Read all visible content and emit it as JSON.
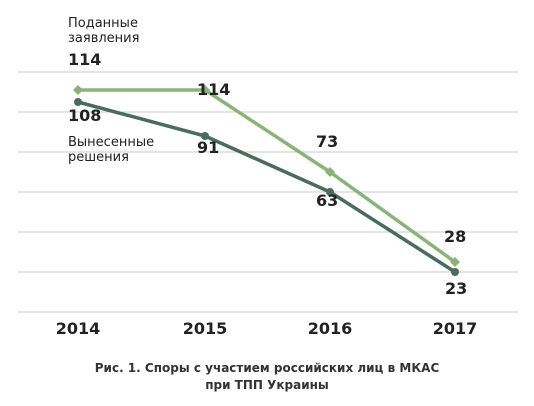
{
  "chart_data": {
    "type": "line",
    "categories": [
      "2014",
      "2015",
      "2016",
      "2017"
    ],
    "series": [
      {
        "name": "Поданные заявления",
        "name_lines": [
          "Поданные",
          "заявления"
        ],
        "values": [
          114,
          114,
          73,
          28
        ],
        "value_labels": [
          "114",
          "114",
          "73",
          "28"
        ],
        "color": "#8ab37a",
        "marker": "diamond"
      },
      {
        "name": "Вынесенные решения",
        "name_lines": [
          "Вынесенные",
          "решения"
        ],
        "values": [
          108,
          91,
          63,
          23
        ],
        "value_labels": [
          "108",
          "91",
          "63",
          "23"
        ],
        "color": "#4a6b5e",
        "marker": "circle"
      }
    ],
    "grid": true,
    "title": "Рис. 1. Споры с участием российских лиц в МКАС при ТПП Украины",
    "title_lines": [
      "Рис. 1. Споры с участием российских лиц в МКАС",
      "при ТПП Украины"
    ]
  }
}
